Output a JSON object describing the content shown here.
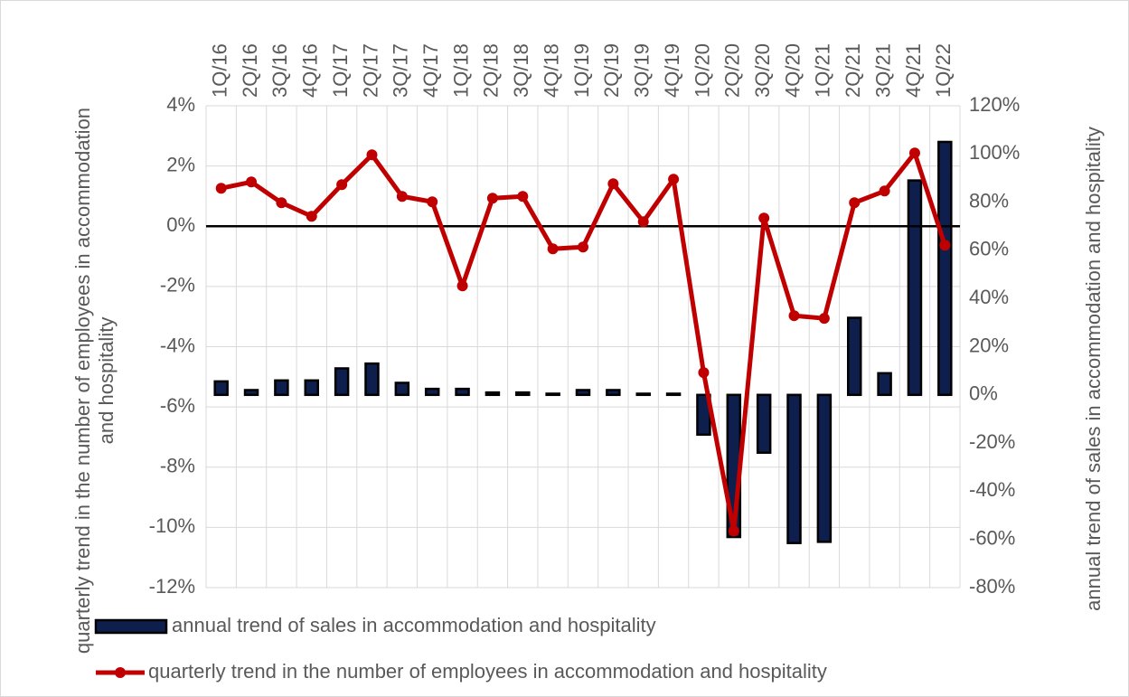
{
  "chart_data": {
    "type": "bar-line",
    "categories": [
      "1Q/16",
      "2Q/16",
      "3Q/16",
      "4Q/16",
      "1Q/17",
      "2Q/17",
      "3Q/17",
      "4Q/17",
      "1Q/18",
      "2Q/18",
      "3Q/18",
      "4Q/18",
      "1Q/19",
      "2Q/19",
      "3Q/19",
      "4Q/19",
      "1Q/20",
      "2Q/20",
      "3Q/20",
      "4Q/20",
      "1Q/21",
      "2Q/21",
      "3Q/21",
      "4Q/21",
      "1Q/22"
    ],
    "y_label": "quarterly trend in the number of employees in accommodation and hospitality",
    "y2_label": "annual trend of sales in accommodation and hospitality",
    "ylim": [
      -12,
      4
    ],
    "yticks": [
      {
        "value": -12,
        "label": "-12%"
      },
      {
        "value": -10,
        "label": "-10%"
      },
      {
        "value": -8,
        "label": "-8%"
      },
      {
        "value": -6,
        "label": "-6%"
      },
      {
        "value": -4,
        "label": "-4%"
      },
      {
        "value": -2,
        "label": "-2%"
      },
      {
        "value": 0,
        "label": "0%"
      },
      {
        "value": 2,
        "label": "2%"
      },
      {
        "value": 4,
        "label": "4%"
      }
    ],
    "y2lim": [
      -80,
      120
    ],
    "y2ticks": [
      {
        "value": -80,
        "label": "-80%"
      },
      {
        "value": -60,
        "label": "-60%"
      },
      {
        "value": -40,
        "label": "-40%"
      },
      {
        "value": -20,
        "label": "-20%"
      },
      {
        "value": 0,
        "label": "0%"
      },
      {
        "value": 20,
        "label": "20%"
      },
      {
        "value": 40,
        "label": "40%"
      },
      {
        "value": 60,
        "label": "60%"
      },
      {
        "value": 80,
        "label": "80%"
      },
      {
        "value": 100,
        "label": "100%"
      },
      {
        "value": 120,
        "label": "120%"
      }
    ],
    "grid": true,
    "series": [
      {
        "name": "annual trend of sales in accommodation and hospitality",
        "type": "bar",
        "axis": "y2",
        "color": "#0e1f4d",
        "values": [
          5.6,
          2,
          6,
          6,
          11,
          13,
          5,
          2.5,
          2.5,
          1,
          1,
          0.5,
          2,
          2,
          0.5,
          0.5,
          -16.5,
          -59,
          -24,
          -61.5,
          -61,
          32,
          9,
          89,
          105
        ]
      },
      {
        "name": "quarterly trend in the number of employees in accommodation and hospitality",
        "type": "line",
        "axis": "y",
        "color": "#c00000",
        "values": [
          1.26,
          1.47,
          0.78,
          0.33,
          1.38,
          2.37,
          0.99,
          0.81,
          -1.98,
          0.93,
          0.99,
          -0.75,
          -0.69,
          1.41,
          0.15,
          1.56,
          -4.86,
          -10.12,
          0.27,
          -2.97,
          -3.06,
          0.78,
          1.17,
          2.43,
          -0.63
        ]
      }
    ]
  }
}
